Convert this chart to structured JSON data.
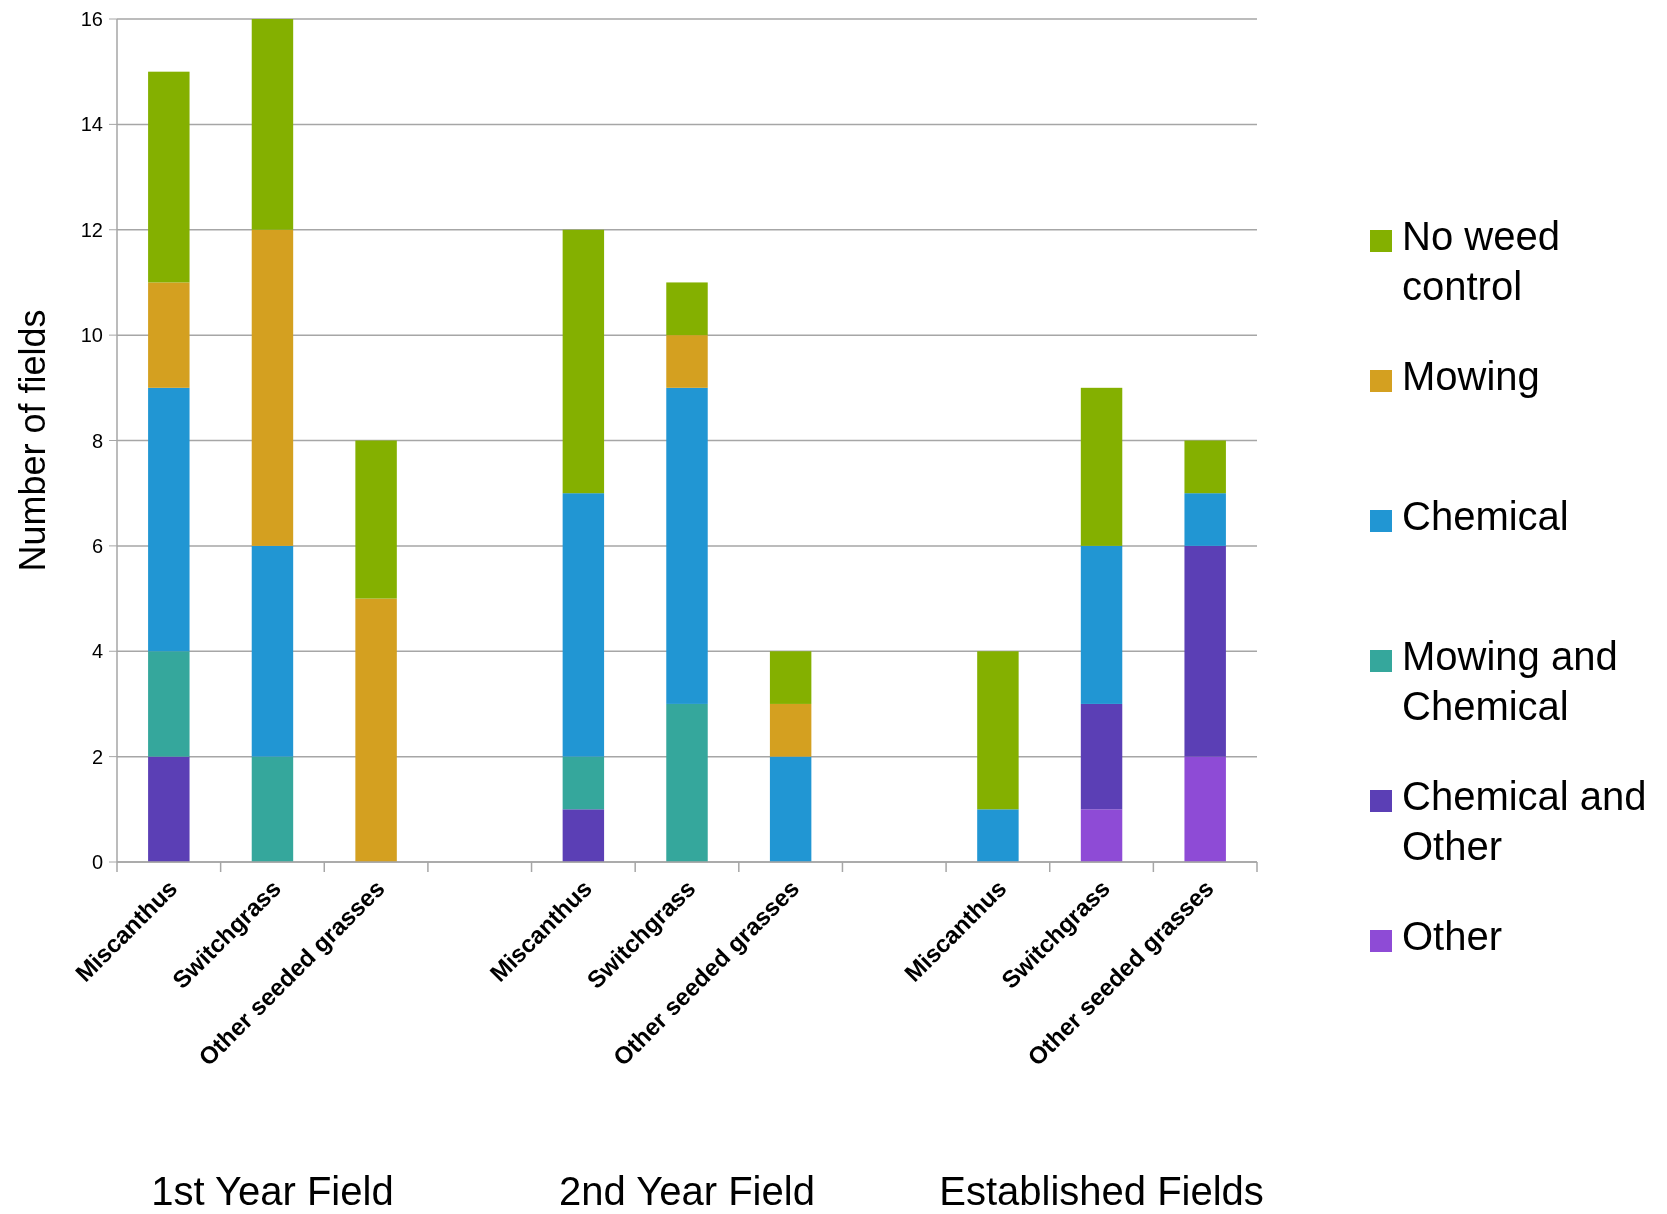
{
  "chart_data": {
    "type": "bar",
    "stacked": true,
    "ylabel": "Number of fields",
    "categories": [
      "Miscanthus",
      "Switchgrass",
      "Other seeded grasses",
      null,
      "Miscanthus",
      "Switchgrass",
      "Other seeded grasses",
      null,
      "Miscanthus",
      "Switchgrass",
      "Other seeded grasses"
    ],
    "series": [
      {
        "name": "Other",
        "color": "#8e4bd6",
        "values": [
          0,
          0,
          0,
          null,
          0,
          0,
          0,
          null,
          0,
          1,
          2
        ]
      },
      {
        "name": "Chemical and Other",
        "color": "#5b3fb5",
        "values": [
          2,
          0,
          0,
          null,
          1,
          0,
          0,
          null,
          0,
          2,
          4
        ]
      },
      {
        "name": "Mowing and Chemical",
        "color": "#35a79c",
        "values": [
          2,
          2,
          0,
          null,
          1,
          3,
          0,
          null,
          0,
          0,
          0
        ]
      },
      {
        "name": "Chemical",
        "color": "#2196d3",
        "values": [
          5,
          4,
          0,
          null,
          5,
          6,
          2,
          null,
          1,
          3,
          1
        ]
      },
      {
        "name": "Mowing",
        "color": "#d4a020",
        "values": [
          2,
          6,
          5,
          null,
          0,
          1,
          1,
          null,
          0,
          0,
          0
        ]
      },
      {
        "name": "No weed control",
        "color": "#84b000",
        "values": [
          4,
          4,
          3,
          null,
          5,
          1,
          1,
          null,
          3,
          3,
          1
        ]
      }
    ],
    "annotations": [
      "1st Year Field",
      "2nd Year Field",
      "Established Fields"
    ],
    "ylim": [
      0,
      16
    ],
    "yticks": [
      0,
      2,
      4,
      6,
      8,
      10,
      12,
      14,
      16
    ],
    "grid": "y",
    "legend": "right"
  }
}
